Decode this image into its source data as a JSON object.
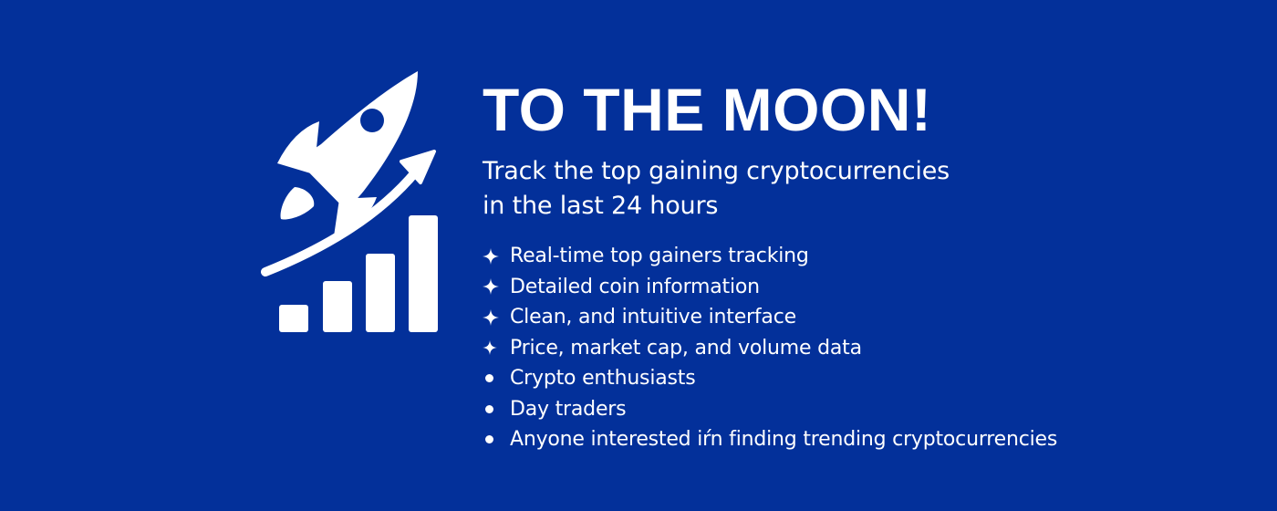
{
  "banner": {
    "headline": "TO THE MOON!",
    "subtitle_lines": [
      "Track the top gaining cryptocurrencies",
      "in the last 24 hours"
    ],
    "logo_icon": "rocket-growth-chart-icon",
    "features": [
      {
        "marker": "sparkle",
        "text": "Real-time top gainers tracking"
      },
      {
        "marker": "sparkle",
        "text": "Detailed coin information"
      },
      {
        "marker": "sparkle",
        "text": "Clean, and intuitive interface"
      },
      {
        "marker": "sparkle",
        "text": "Price, market cap, and volume data"
      }
    ],
    "audience": [
      {
        "marker": "dot",
        "text": "Crypto enthusiasts"
      },
      {
        "marker": "dot",
        "text": "Day traders"
      },
      {
        "marker": "dot",
        "text": "Anyone interested iŕn finding trending cryptocurrencies"
      }
    ]
  },
  "colors": {
    "background": "#03309a",
    "foreground": "#ffffff"
  }
}
